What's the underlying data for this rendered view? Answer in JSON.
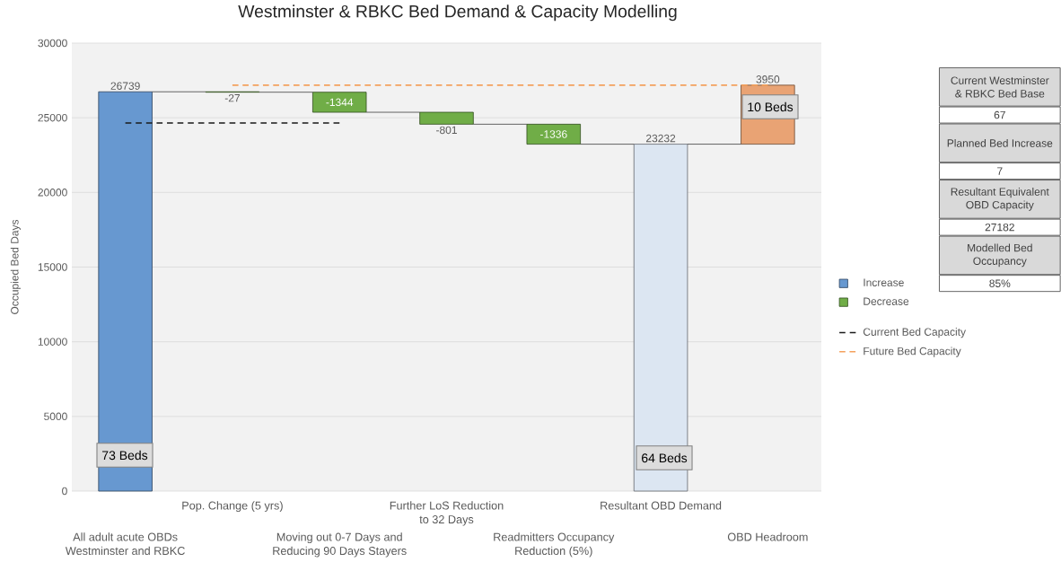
{
  "chart_data": [
    {
      "type": "bar",
      "title": "Westminster & RBKC Bed Demand & Capacity Modelling",
      "ylabel": "Occupied Bed Days",
      "categories": [
        "All adult acute OBDs Westminster and RBKC",
        "Pop. Change (5 yrs)",
        "Moving out 0-7 Days and Reducing 90 Days Stayers",
        "Further LoS Reduction to 32 Days",
        "Readmitters Occupancy Reduction (5%)",
        "Resultant OBD Demand",
        "OBD Headroom"
      ],
      "series": [
        {
          "name": "Increase",
          "color": "#6798d0",
          "values": [
            26739,
            null,
            null,
            null,
            null,
            null,
            null
          ],
          "base": [
            0,
            null,
            null,
            null,
            null,
            null,
            null
          ],
          "value_labels": [
            "26739",
            null,
            null,
            null,
            null,
            null,
            null
          ]
        },
        {
          "name": "Decrease",
          "color": "#70ad47",
          "values": [
            null,
            -27,
            -1344,
            -801,
            -1336,
            null,
            null
          ],
          "base": [
            null,
            26739,
            26712,
            25368,
            24567,
            null,
            null
          ],
          "value_labels": [
            null,
            "-27",
            "-1344",
            "-801",
            "-1336",
            null,
            null
          ]
        },
        {
          "color": "#dce6f2",
          "values": [
            null,
            null,
            null,
            null,
            null,
            23232,
            null
          ],
          "base": [
            null,
            null,
            null,
            null,
            null,
            0,
            null
          ],
          "value_labels": [
            null,
            null,
            null,
            null,
            null,
            "23232",
            null
          ]
        },
        {
          "color": "#e9a374",
          "values": [
            null,
            null,
            null,
            null,
            null,
            null,
            3950
          ],
          "base": [
            null,
            null,
            null,
            null,
            null,
            null,
            23232
          ],
          "value_labels": [
            null,
            null,
            null,
            null,
            null,
            null,
            "3950"
          ]
        },
        {
          "name": "Current Bed Capacity",
          "type": "line",
          "color": "#1a1a1a",
          "line_style": "dashed",
          "values": [
            24650,
            24650,
            24650,
            null,
            null,
            null,
            null
          ]
        },
        {
          "name": "Future Bed Capacity",
          "type": "line",
          "color": "#f4a15d",
          "line_style": "dashed",
          "values": [
            null,
            27182,
            27182,
            27182,
            27182,
            27182,
            27182
          ]
        }
      ],
      "ylim": [
        0,
        30000
      ],
      "yticks": [
        0,
        5000,
        10000,
        15000,
        20000,
        25000,
        30000
      ],
      "grid": "y",
      "legend": "right",
      "annotations": [
        "73 Beds",
        "64 Beds",
        "10 Beds"
      ]
    },
    {
      "type": "other",
      "annotations": [
        "Current Westminster & RBKC Bed Base",
        "67",
        "Planned Bed Increase",
        "7",
        "Resultant Equivalent OBD Capacity",
        "27182",
        "Modelled Bed Occupancy",
        "85%"
      ]
    }
  ]
}
